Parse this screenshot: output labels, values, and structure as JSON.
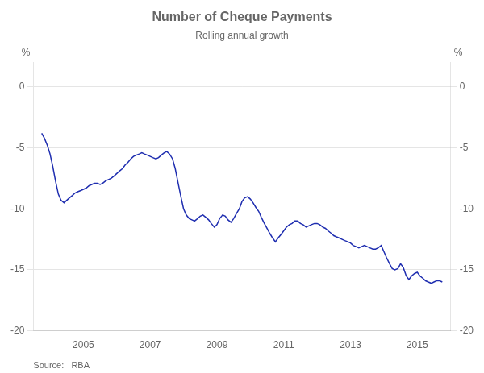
{
  "chart_data": {
    "type": "line",
    "title": "Number of Cheque Payments",
    "subtitle": "Rolling annual growth",
    "source": "Source:   RBA",
    "ylabel": "%",
    "y2label": "%",
    "xlim": [
      2003.5,
      2016.0
    ],
    "xticks": [
      2005,
      2007,
      2009,
      2011,
      2013,
      2015
    ],
    "ylim": [
      -20,
      2
    ],
    "yticks": [
      -20,
      -15,
      -10,
      -5,
      0
    ],
    "y2lim": [
      -20,
      2
    ],
    "y2ticks": [
      -20,
      -15,
      -10,
      -5,
      0
    ],
    "grid": true,
    "color": "#1f2eb0",
    "x": [
      2003.75,
      2003.83,
      2003.92,
      2004.0,
      2004.08,
      2004.17,
      2004.25,
      2004.33,
      2004.42,
      2004.5,
      2004.58,
      2004.67,
      2004.75,
      2004.83,
      2004.92,
      2005.0,
      2005.08,
      2005.17,
      2005.25,
      2005.33,
      2005.42,
      2005.5,
      2005.58,
      2005.67,
      2005.75,
      2005.83,
      2005.92,
      2006.0,
      2006.08,
      2006.17,
      2006.25,
      2006.33,
      2006.42,
      2006.5,
      2006.58,
      2006.67,
      2006.75,
      2006.83,
      2006.92,
      2007.0,
      2007.08,
      2007.17,
      2007.25,
      2007.33,
      2007.42,
      2007.5,
      2007.58,
      2007.67,
      2007.75,
      2007.83,
      2007.92,
      2008.0,
      2008.08,
      2008.17,
      2008.25,
      2008.33,
      2008.42,
      2008.5,
      2008.58,
      2008.67,
      2008.75,
      2008.83,
      2008.92,
      2009.0,
      2009.08,
      2009.17,
      2009.25,
      2009.33,
      2009.42,
      2009.5,
      2009.58,
      2009.67,
      2009.75,
      2009.83,
      2009.92,
      2010.0,
      2010.08,
      2010.17,
      2010.25,
      2010.33,
      2010.42,
      2010.5,
      2010.58,
      2010.67,
      2010.75,
      2010.83,
      2010.92,
      2011.0,
      2011.08,
      2011.17,
      2011.25,
      2011.33,
      2011.42,
      2011.5,
      2011.58,
      2011.67,
      2011.75,
      2011.83,
      2011.92,
      2012.0,
      2012.08,
      2012.17,
      2012.25,
      2012.33,
      2012.42,
      2012.5,
      2012.58,
      2012.67,
      2012.75,
      2012.83,
      2012.92,
      2013.0,
      2013.08,
      2013.17,
      2013.25,
      2013.33,
      2013.42,
      2013.5,
      2013.58,
      2013.67,
      2013.75,
      2013.83,
      2013.92,
      2014.0,
      2014.08,
      2014.17,
      2014.25,
      2014.33,
      2014.42,
      2014.5,
      2014.58,
      2014.67,
      2014.75,
      2014.83,
      2014.92,
      2015.0,
      2015.08,
      2015.17,
      2015.25,
      2015.33,
      2015.42,
      2015.5,
      2015.58,
      2015.67,
      2015.75
    ],
    "values": [
      -3.8,
      -4.2,
      -4.8,
      -5.5,
      -6.5,
      -7.8,
      -8.8,
      -9.3,
      -9.5,
      -9.3,
      -9.1,
      -8.9,
      -8.7,
      -8.6,
      -8.5,
      -8.4,
      -8.3,
      -8.1,
      -8.0,
      -7.9,
      -7.9,
      -8.0,
      -7.9,
      -7.7,
      -7.6,
      -7.5,
      -7.3,
      -7.1,
      -6.9,
      -6.7,
      -6.4,
      -6.2,
      -5.9,
      -5.7,
      -5.6,
      -5.5,
      -5.4,
      -5.5,
      -5.6,
      -5.7,
      -5.8,
      -5.9,
      -5.8,
      -5.6,
      -5.4,
      -5.3,
      -5.5,
      -5.9,
      -6.7,
      -7.8,
      -9.0,
      -10.0,
      -10.5,
      -10.8,
      -10.9,
      -11.0,
      -10.8,
      -10.6,
      -10.5,
      -10.7,
      -10.9,
      -11.2,
      -11.5,
      -11.3,
      -10.8,
      -10.5,
      -10.6,
      -10.9,
      -11.1,
      -10.8,
      -10.4,
      -10.0,
      -9.4,
      -9.1,
      -9.0,
      -9.2,
      -9.5,
      -9.9,
      -10.2,
      -10.7,
      -11.2,
      -11.6,
      -12.0,
      -12.4,
      -12.7,
      -12.4,
      -12.1,
      -11.8,
      -11.5,
      -11.3,
      -11.2,
      -11.0,
      -11.0,
      -11.2,
      -11.3,
      -11.5,
      -11.4,
      -11.3,
      -11.2,
      -11.2,
      -11.3,
      -11.5,
      -11.6,
      -11.8,
      -12.0,
      -12.2,
      -12.3,
      -12.4,
      -12.5,
      -12.6,
      -12.7,
      -12.8,
      -13.0,
      -13.1,
      -13.2,
      -13.1,
      -13.0,
      -13.1,
      -13.2,
      -13.3,
      -13.3,
      -13.2,
      -13.0,
      -13.5,
      -14.0,
      -14.5,
      -14.9,
      -15.0,
      -14.9,
      -14.5,
      -14.8,
      -15.5,
      -15.8,
      -15.5,
      -15.3,
      -15.2,
      -15.5,
      -15.7,
      -15.9,
      -16.0,
      -16.1,
      -16.0,
      -15.9,
      -15.9,
      -16.0
    ]
  }
}
